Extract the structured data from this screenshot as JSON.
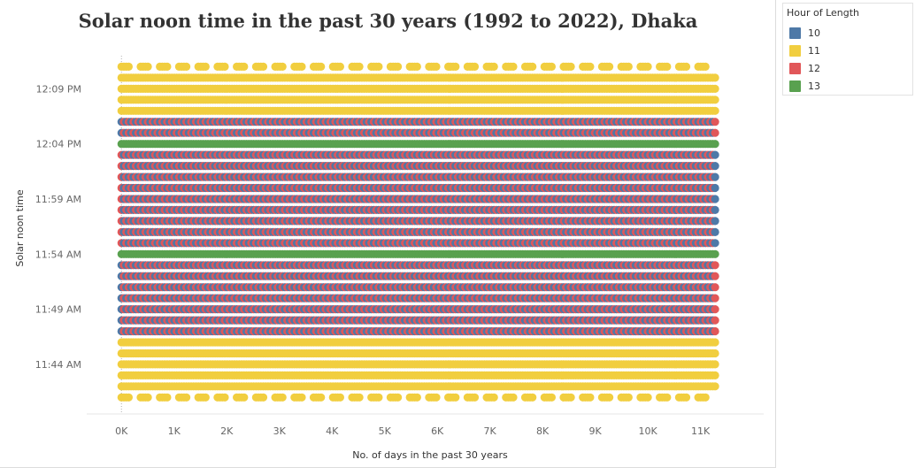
{
  "chart_data": {
    "type": "scatter",
    "title": "Solar noon time in the past 30 years (1992 to 2022), Dhaka",
    "xlabel": "No. of days in the past 30 years",
    "ylabel": "Solar noon time",
    "x_ticks": [
      "0K",
      "1K",
      "2K",
      "3K",
      "4K",
      "5K",
      "6K",
      "7K",
      "8K",
      "9K",
      "10K",
      "11K"
    ],
    "x_tick_values": [
      0,
      1000,
      2000,
      3000,
      4000,
      5000,
      6000,
      7000,
      8000,
      9000,
      10000,
      11000
    ],
    "y_ticks": [
      "12:09 PM",
      "12:04 PM",
      "11:59 AM",
      "11:54 AM",
      "11:49 AM",
      "11:44 AM"
    ],
    "y_tick_minutes": [
      729,
      724,
      719,
      714,
      709,
      704
    ],
    "xlim": [
      -660,
      12200
    ],
    "ylim": [
      699.5,
      732.8
    ],
    "legend_position": "top-right",
    "legend_title": "Hour of Length",
    "series": [
      {
        "name": "10",
        "color": "#4e79a7"
      },
      {
        "name": "11",
        "color": "#f1ce3f"
      },
      {
        "name": "12",
        "color": "#e15759"
      },
      {
        "name": "13",
        "color": "#59a14f"
      }
    ],
    "columns_per_year": 2,
    "years": 30,
    "year_length_days": 365.25,
    "pattern_start_x": 0,
    "pattern_end_x": 11300,
    "time_step_minutes": 1,
    "time_min_minutes": 701,
    "time_max_minutes": 731,
    "band_13_minutes": [
      714,
      724
    ],
    "band_12_range_minutes": [
      715,
      723
    ],
    "note_points": "dense regular grid of points; each column spans a range of solar noon minutes, colored by day length in hours"
  }
}
